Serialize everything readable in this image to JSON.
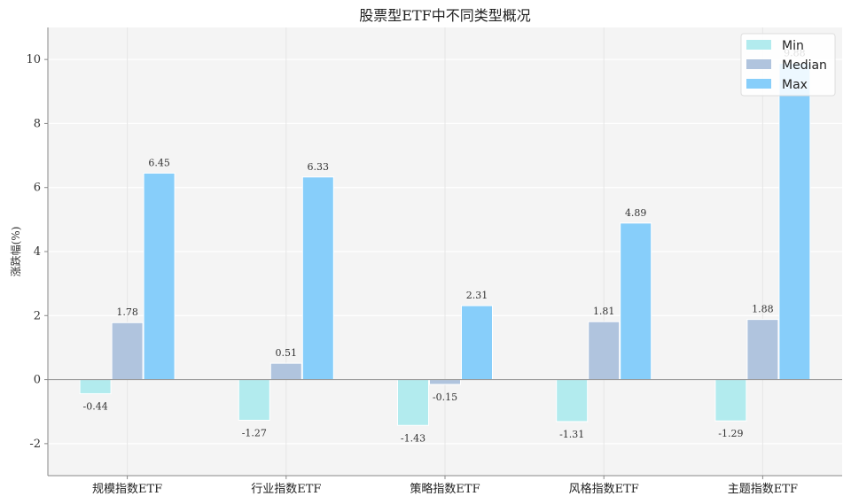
{
  "chart_data": {
    "type": "bar",
    "title": "股票型ETF中不同类型概况",
    "ylabel": "涨跌幅(%)",
    "xlabel": "",
    "ylim": [
      -3,
      11
    ],
    "yticks": [
      -2,
      0,
      2,
      4,
      6,
      8,
      10
    ],
    "grid": true,
    "legend_position": "top-right",
    "categories": [
      "规模指数ETF",
      "行业指数ETF",
      "策略指数ETF",
      "风格指数ETF",
      "主题指数ETF"
    ],
    "series": [
      {
        "name": "Min",
        "color": "#b2ebee",
        "values": [
          -0.44,
          -1.27,
          -1.43,
          -1.31,
          -1.29
        ]
      },
      {
        "name": "Median",
        "color": "#b0c4de",
        "values": [
          1.78,
          0.51,
          -0.15,
          1.81,
          1.88
        ]
      },
      {
        "name": "Max",
        "color": "#87cefa",
        "values": [
          6.45,
          6.33,
          2.31,
          4.89,
          9.88
        ]
      }
    ]
  }
}
